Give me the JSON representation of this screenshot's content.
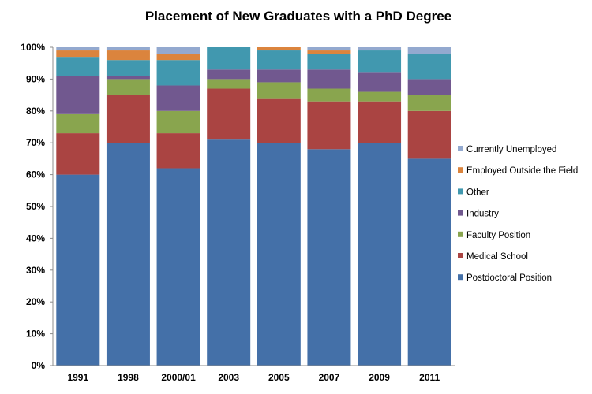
{
  "chart_data": {
    "type": "bar",
    "stacked": true,
    "title": "Placement of New Graduates with a PhD Degree",
    "xlabel": "",
    "ylabel": "",
    "categories": [
      "1991",
      "1998",
      "2000/01",
      "2003",
      "2005",
      "2007",
      "2009",
      "2011"
    ],
    "y_ticks": [
      "0%",
      "10%",
      "20%",
      "30%",
      "40%",
      "50%",
      "60%",
      "70%",
      "80%",
      "90%",
      "100%"
    ],
    "ylim": [
      0,
      100
    ],
    "grid": false,
    "legend_position": "right",
    "series": [
      {
        "name": "Postdoctoral Position",
        "color": "#4470a8",
        "values": [
          60,
          70,
          62,
          71,
          70,
          68,
          70,
          65
        ]
      },
      {
        "name": "Medical School",
        "color": "#aa4442",
        "values": [
          13,
          15,
          11,
          16,
          14,
          15,
          13,
          15
        ]
      },
      {
        "name": "Faculty Position",
        "color": "#89a54e",
        "values": [
          6,
          5,
          7,
          3,
          5,
          4,
          3,
          5
        ]
      },
      {
        "name": "Industry",
        "color": "#71588f",
        "values": [
          12,
          1,
          8,
          3,
          4,
          6,
          6,
          5
        ]
      },
      {
        "name": "Other",
        "color": "#4198af",
        "values": [
          6,
          5,
          8,
          7,
          6,
          5,
          7,
          8
        ]
      },
      {
        "name": "Employed Outside the Field",
        "color": "#db843d",
        "values": [
          2,
          3,
          2,
          0,
          1,
          1,
          0,
          0
        ]
      },
      {
        "name": "Currently Unemployed",
        "color": "#93a9cf",
        "values": [
          1,
          1,
          2,
          0,
          0,
          1,
          1,
          2
        ]
      }
    ]
  }
}
